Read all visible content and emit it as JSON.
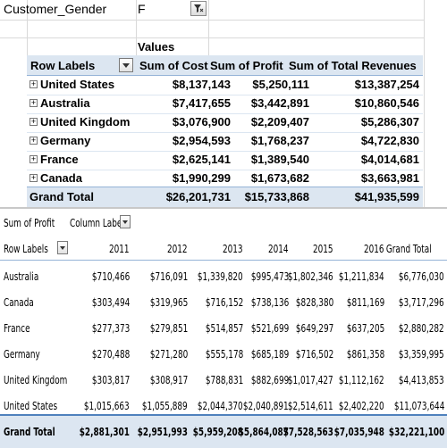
{
  "top_pivot": {
    "filter": {
      "field": "Customer_Gender",
      "value": "F"
    },
    "values_header": "Values",
    "headers": [
      "Row Labels",
      "Sum of Cost",
      "Sum of Profit",
      "Sum of Total Revenues"
    ],
    "rows": [
      {
        "label": "United States",
        "cost": "$8,137,143",
        "profit": "$5,250,111",
        "revenue": "$13,387,254"
      },
      {
        "label": "Australia",
        "cost": "$7,417,655",
        "profit": "$3,442,891",
        "revenue": "$10,860,546"
      },
      {
        "label": "United Kingdom",
        "cost": "$3,076,900",
        "profit": "$2,209,407",
        "revenue": "$5,286,307"
      },
      {
        "label": "Germany",
        "cost": "$2,954,593",
        "profit": "$1,768,237",
        "revenue": "$4,722,830"
      },
      {
        "label": "France",
        "cost": "$2,625,141",
        "profit": "$1,389,540",
        "revenue": "$4,014,681"
      },
      {
        "label": "Canada",
        "cost": "$1,990,299",
        "profit": "$1,673,682",
        "revenue": "$3,663,981"
      }
    ],
    "grand_total": {
      "label": "Grand Total",
      "cost": "$26,201,731",
      "profit": "$15,733,868",
      "revenue": "$41,935,599"
    }
  },
  "bottom_pivot": {
    "value_field": "Sum of Profit",
    "column_labels": "Column Labe",
    "row_labels": "Row Labels",
    "years": [
      "2011",
      "2012",
      "2013",
      "2014",
      "2015",
      "2016",
      "Grand Total"
    ],
    "rows": [
      {
        "label": "Australia",
        "values": [
          "$710,466",
          "$716,091",
          "$1,339,820",
          "$995,473",
          "$1,802,346",
          "$1,211,834",
          "$6,776,030"
        ]
      },
      {
        "label": "Canada",
        "values": [
          "$303,494",
          "$319,965",
          "$716,152",
          "$738,136",
          "$828,380",
          "$811,169",
          "$3,717,296"
        ]
      },
      {
        "label": "France",
        "values": [
          "$277,373",
          "$279,851",
          "$514,857",
          "$521,699",
          "$649,297",
          "$637,205",
          "$2,880,282"
        ]
      },
      {
        "label": "Germany",
        "values": [
          "$270,488",
          "$271,280",
          "$555,178",
          "$685,189",
          "$716,502",
          "$861,358",
          "$3,359,995"
        ]
      },
      {
        "label": "United Kingdom",
        "values": [
          "$303,817",
          "$308,917",
          "$788,831",
          "$882,699",
          "$1,017,427",
          "$1,112,162",
          "$4,413,853"
        ]
      },
      {
        "label": "United States",
        "values": [
          "$1,015,663",
          "$1,055,889",
          "$2,044,370",
          "$2,040,891",
          "$2,514,611",
          "$2,402,220",
          "$11,073,644"
        ]
      }
    ],
    "grand_total": {
      "label": "Grand Total",
      "values": [
        "$2,881,301",
        "$2,951,993",
        "$5,959,208",
        "$5,864,087",
        "$7,528,563",
        "$7,035,948",
        "$32,221,100"
      ]
    }
  },
  "colors": {
    "header_band": "#dce6f1",
    "header_border": "#95b3d7",
    "grand_border": "#4f81bd"
  }
}
